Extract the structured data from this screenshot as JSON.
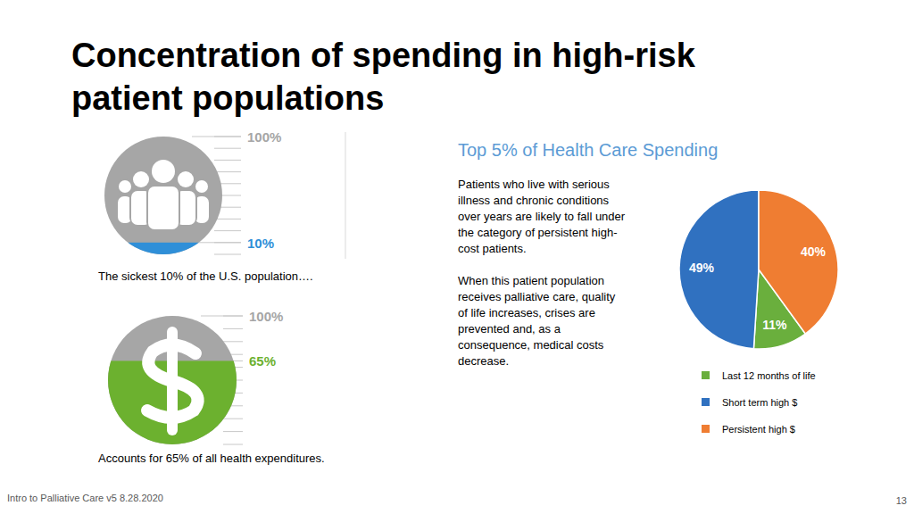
{
  "slide": {
    "title_lines": [
      "Concentration of spending in high-risk",
      "patient populations"
    ],
    "footer": "Intro to Palliative Care v5 8.28.2020",
    "page_number": "13"
  },
  "infographics": [
    {
      "color": "#2f8fd8",
      "max": {
        "value": 100,
        "label": "100%"
      },
      "value": {
        "value": 10,
        "label": "10%"
      },
      "caption": "The sickest 10% of the U.S. population…."
    },
    {
      "color": "#6cb12f",
      "max": {
        "value": 100,
        "label": "100%"
      },
      "value": {
        "value": 65,
        "label": "65%"
      },
      "caption": "Accounts for 65% of all health expenditures."
    }
  ],
  "text_panel": {
    "heading": "Top 5% of Health Care Spending",
    "paragraphs": [
      [
        "Patients who live with serious",
        "illness and chronic conditions",
        "over years are likely to fall under",
        "the category of persistent high-",
        "cost patients."
      ],
      [
        "When this patient population",
        "receives palliative care, quality",
        "of life increases, crises are",
        "prevented and, as a",
        "consequence, medical costs",
        "decrease."
      ]
    ]
  },
  "chart_data": {
    "type": "pie",
    "categories": [
      "Last 12 months of life",
      "Short term high $",
      "Persistent high $"
    ],
    "values": [
      11,
      49,
      40
    ],
    "value_labels": [
      "11%",
      "49%",
      "40%"
    ],
    "colors": [
      "#6aaf3d",
      "#3071c0",
      "#ef7d32"
    ],
    "data_labels": true,
    "legend": "bottom"
  }
}
